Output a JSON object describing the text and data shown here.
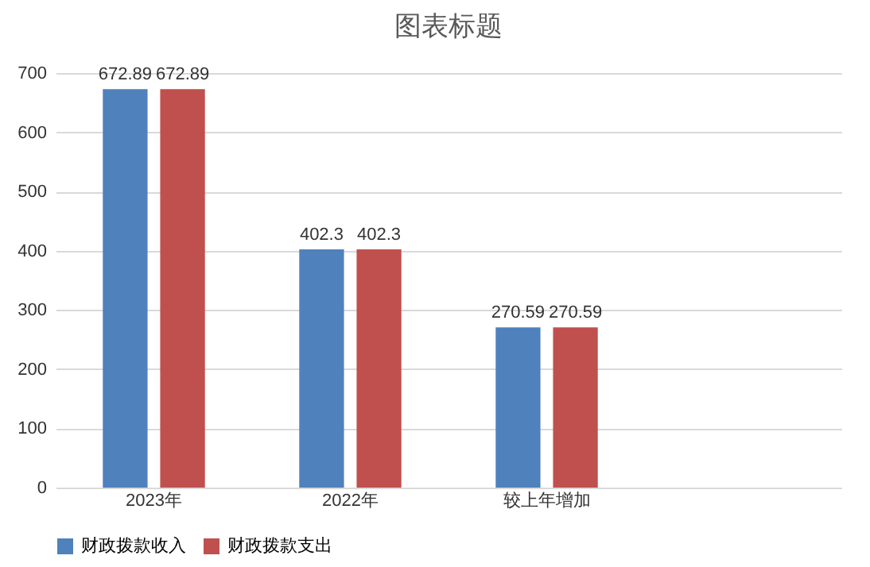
{
  "chart_data": {
    "type": "bar",
    "title": "图表标题",
    "categories": [
      "2023年",
      "2022年",
      "较上年增加",
      null
    ],
    "series": [
      {
        "name": "财政拨款收入",
        "color": "#4f81bd",
        "values": [
          672.89,
          402.3,
          270.59,
          null
        ]
      },
      {
        "name": "财政拨款支出",
        "color": "#c0504d",
        "values": [
          672.89,
          402.3,
          270.59,
          null
        ]
      }
    ],
    "ylim": [
      0,
      700
    ],
    "yticks": [
      0,
      100,
      200,
      300,
      400,
      500,
      600,
      700
    ],
    "grid": "y",
    "legend": "bottom",
    "data_labels": true
  }
}
